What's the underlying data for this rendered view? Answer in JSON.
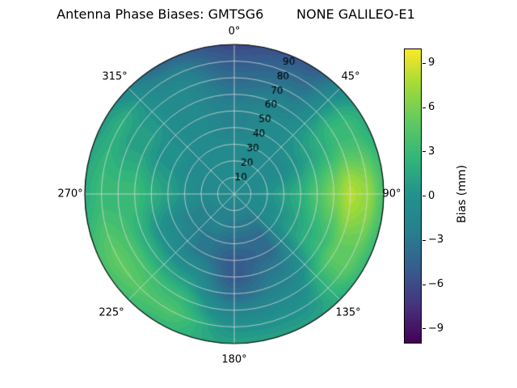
{
  "title": "Antenna Phase Biases: GMTSG6        NONE GALILEO-E1",
  "chart_data": {
    "type": "heatmap",
    "projection": "polar",
    "title": "Antenna Phase Biases: GMTSG6        NONE GALILEO-E1",
    "theta_direction": "clockwise",
    "theta_zero_location": "top",
    "theta_tick_labels": [
      "0°",
      "45°",
      "90°",
      "135°",
      "180°",
      "225°",
      "270°",
      "315°"
    ],
    "r_tick_labels": [
      "10",
      "20",
      "30",
      "40",
      "50",
      "60",
      "70",
      "80",
      "90"
    ],
    "r_range": [
      0,
      90
    ],
    "rlabel_angle_deg": 22.5,
    "grid": true,
    "grid_color": "#dcdcdc",
    "colormap": "viridis",
    "colormap_stops": [
      "#440154",
      "#46327e",
      "#365c8d",
      "#277f8e",
      "#21918c",
      "#31b57b",
      "#5ec962",
      "#a0da39",
      "#fde725"
    ],
    "value_range": [
      -10,
      10
    ],
    "azimuths_deg": [
      0,
      30,
      60,
      90,
      120,
      150,
      180,
      210,
      240,
      270,
      300,
      330
    ],
    "radii_deg": [
      0,
      10,
      20,
      30,
      40,
      50,
      60,
      70,
      80,
      90
    ],
    "bias_mm": [
      [
        -1,
        -1,
        -1,
        -1,
        -2,
        -2,
        -3,
        -4,
        -5,
        -6
      ],
      [
        -1,
        -1,
        -1,
        -1,
        -1,
        -1,
        -2,
        -3,
        -4,
        -5
      ],
      [
        -1,
        -1,
        -1,
        -1,
        0,
        1,
        2,
        3,
        3,
        2
      ],
      [
        -1,
        -1,
        0,
        1,
        2,
        4,
        6,
        8,
        7,
        4
      ],
      [
        -1,
        -1,
        -1,
        0,
        1,
        2,
        3,
        5,
        5,
        3
      ],
      [
        -1,
        -2,
        -3,
        -4,
        -4,
        -3,
        -2,
        -1,
        0,
        1
      ],
      [
        -1,
        -2,
        -3,
        -4,
        -5,
        -5,
        -4,
        -2,
        0,
        1
      ],
      [
        -1,
        -2,
        -2,
        -3,
        -3,
        -1,
        1,
        3,
        4,
        3
      ],
      [
        -1,
        -1,
        -2,
        -2,
        -1,
        0,
        2,
        4,
        5,
        4
      ],
      [
        -1,
        -1,
        -1,
        0,
        1,
        2,
        3,
        3,
        3,
        2
      ],
      [
        -1,
        -1,
        -1,
        -1,
        0,
        0,
        1,
        1,
        2,
        1
      ],
      [
        -1,
        -1,
        -1,
        -1,
        -1,
        -1,
        -1,
        -1,
        -2,
        -4
      ]
    ],
    "colorbar": {
      "label": "Bias (mm)",
      "ticks": [
        {
          "value": 9,
          "label": "9"
        },
        {
          "value": 6,
          "label": "6"
        },
        {
          "value": 3,
          "label": "3"
        },
        {
          "value": 0,
          "label": "0"
        },
        {
          "value": -3,
          "label": "−3"
        },
        {
          "value": -6,
          "label": "−6"
        },
        {
          "value": -9,
          "label": "−9"
        }
      ]
    }
  }
}
